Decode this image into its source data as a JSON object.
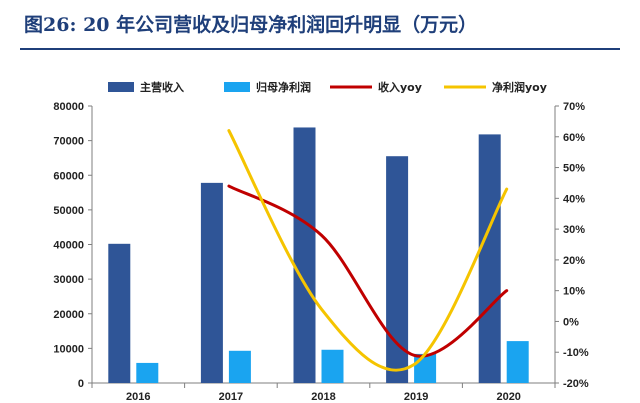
{
  "title": "图26: 20 年公司营收及归母净利润回升明显（万元）",
  "colors": {
    "revenue": "#2f5597",
    "net_profit": "#1aa4f0",
    "revenue_yoy": "#c00000",
    "net_profit_yoy": "#f5c400",
    "title": "#1f3f7a"
  },
  "chart_data": {
    "type": "bar",
    "categories": [
      "2016",
      "2017",
      "2018",
      "2019",
      "2020"
    ],
    "series": [
      {
        "name": "主营收入",
        "type": "bar",
        "axis": "left",
        "values": [
          40200,
          57800,
          73800,
          65500,
          71800
        ]
      },
      {
        "name": "归母净利润",
        "type": "bar",
        "axis": "left",
        "values": [
          5800,
          9300,
          9600,
          8400,
          12100
        ]
      },
      {
        "name": "收入yoy",
        "type": "line",
        "axis": "right",
        "values": [
          null,
          44,
          28,
          -11,
          10
        ]
      },
      {
        "name": "净利润yoy",
        "type": "line",
        "axis": "right",
        "values": [
          null,
          62,
          4,
          -14,
          43
        ]
      }
    ],
    "left_axis": {
      "min": 0,
      "max": 80000,
      "ticks": [
        "0",
        "10000",
        "20000",
        "30000",
        "40000",
        "50000",
        "60000",
        "70000",
        "80000"
      ]
    },
    "right_axis": {
      "min": -20,
      "max": 70,
      "ticks": [
        "-20%",
        "-10%",
        "0%",
        "10%",
        "20%",
        "30%",
        "40%",
        "50%",
        "60%",
        "70%"
      ]
    },
    "grid": false,
    "legend_position": "top"
  }
}
